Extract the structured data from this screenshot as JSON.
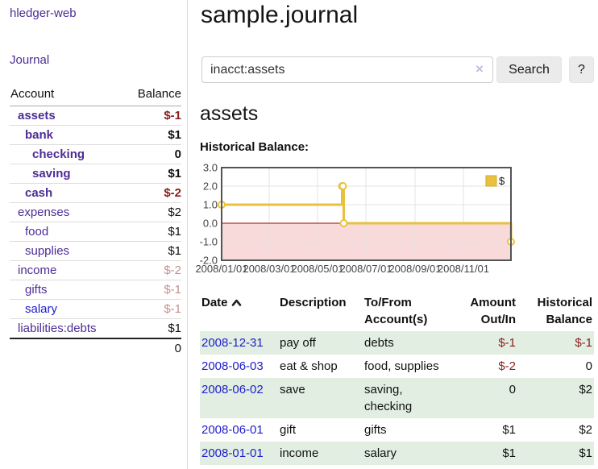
{
  "app": {
    "title": "hledger-web"
  },
  "sidebar": {
    "journal_label": "Journal",
    "accounts_table": {
      "headers": {
        "account": "Account",
        "balance": "Balance"
      },
      "rows": [
        {
          "name": "assets",
          "balance": "$-1",
          "indent": 0,
          "bold": true,
          "balance_tone": "neg-strong",
          "link_tone": "purple"
        },
        {
          "name": "bank",
          "balance": "$1",
          "indent": 1,
          "bold": true,
          "balance_tone": "normal",
          "link_tone": "purple"
        },
        {
          "name": "checking",
          "balance": "0",
          "indent": 2,
          "bold": true,
          "balance_tone": "normal",
          "link_tone": "purple"
        },
        {
          "name": "saving",
          "balance": "$1",
          "indent": 2,
          "bold": true,
          "balance_tone": "normal",
          "link_tone": "purple"
        },
        {
          "name": "cash",
          "balance": "$-2",
          "indent": 1,
          "bold": true,
          "balance_tone": "neg-strong",
          "link_tone": "purple"
        },
        {
          "name": "expenses",
          "balance": "$2",
          "indent": 0,
          "bold": false,
          "balance_tone": "normal",
          "link_tone": "purple"
        },
        {
          "name": "food",
          "balance": "$1",
          "indent": 1,
          "bold": false,
          "balance_tone": "normal",
          "link_tone": "purple"
        },
        {
          "name": "supplies",
          "balance": "$1",
          "indent": 1,
          "bold": false,
          "balance_tone": "normal",
          "link_tone": "purple"
        },
        {
          "name": "income",
          "balance": "$-2",
          "indent": 0,
          "bold": false,
          "balance_tone": "neg-faded",
          "link_tone": "purple"
        },
        {
          "name": "gifts",
          "balance": "$-1",
          "indent": 1,
          "bold": false,
          "balance_tone": "neg-faded",
          "link_tone": "purple"
        },
        {
          "name": "salary",
          "balance": "$-1",
          "indent": 1,
          "bold": false,
          "balance_tone": "neg-faded",
          "link_tone": "blue"
        },
        {
          "name": "liabilities:debts",
          "balance": "$1",
          "indent": 0,
          "bold": false,
          "balance_tone": "normal",
          "link_tone": "purple"
        }
      ],
      "total": "0"
    }
  },
  "main": {
    "title": "sample.journal",
    "search": {
      "value": "inacct:assets",
      "clear_label": "×",
      "button_label": "Search",
      "help_label": "?"
    },
    "account_heading": "assets",
    "chart_label": "Historical Balance:"
  },
  "chart_data": {
    "type": "line",
    "title": "Historical Balance:",
    "step": true,
    "series": [
      {
        "name": "$",
        "points": [
          [
            "2008-01-01",
            1
          ],
          [
            "2008-06-01",
            2
          ],
          [
            "2008-06-02",
            2
          ],
          [
            "2008-06-03",
            0
          ],
          [
            "2008-12-31",
            -1
          ]
        ],
        "point_days": [
          0,
          152,
          153,
          154,
          365
        ],
        "color": "#E8C23F",
        "marker_fill": "#ffffff"
      }
    ],
    "x_tick_labels": [
      "2008/01/01",
      "2008/03/01",
      "2008/05/01",
      "2008/07/01",
      "2008/09/01",
      "2008/11/01"
    ],
    "x_tick_days": [
      0,
      60,
      121,
      182,
      244,
      305
    ],
    "xlim_days": [
      0,
      365
    ],
    "y_ticks": [
      "3.0",
      "2.0",
      "1.0",
      "0.0",
      "-1.0",
      "-2.0"
    ],
    "y_tick_values": [
      3,
      2,
      1,
      0,
      -1,
      -2
    ],
    "ylim": [
      -2,
      3
    ],
    "grid": true,
    "grid_color": "#e3e3e3",
    "border_color": "#545454",
    "negative_region_color": "#f9dada",
    "zero_line_color": "#aa0000",
    "tick_label_color": "#444444",
    "legend": {
      "label": "$",
      "position": "top-right",
      "swatch_color": "#E8C23F",
      "swatch_border": "#cfa92f"
    }
  },
  "register_table": {
    "headers": [
      "Date",
      "Description",
      "To/From Account(s)",
      "Amount Out/In",
      "Historical Balance"
    ],
    "sort": {
      "column": "Date",
      "direction": "asc"
    },
    "rows": [
      {
        "date": "2008-12-31",
        "description": "pay off",
        "accounts": "debts",
        "amount": "$-1",
        "amount_tone": "neg-strong",
        "balance": "$-1",
        "balance_tone": "neg-strong",
        "shaded": true
      },
      {
        "date": "2008-06-03",
        "description": "eat & shop",
        "accounts": "food, supplies",
        "amount": "$-2",
        "amount_tone": "neg-strong",
        "balance": "0",
        "balance_tone": "normal",
        "shaded": false
      },
      {
        "date": "2008-06-02",
        "description": "save",
        "accounts": "saving,\nchecking",
        "amount": "0",
        "amount_tone": "normal",
        "balance": "$2",
        "balance_tone": "normal",
        "shaded": true
      },
      {
        "date": "2008-06-01",
        "description": "gift",
        "accounts": "gifts",
        "amount": "$1",
        "amount_tone": "normal",
        "balance": "$2",
        "balance_tone": "normal",
        "shaded": false
      },
      {
        "date": "2008-01-01",
        "description": "income",
        "accounts": "salary",
        "amount": "$1",
        "amount_tone": "normal",
        "balance": "$1",
        "balance_tone": "normal",
        "shaded": true
      }
    ]
  },
  "colors": {
    "link_purple": "#4c2c96",
    "link_blue": "#2020cc",
    "negative_strong": "#8b1d1d",
    "negative_faded": "#c49190",
    "row_green": "#e1eee1",
    "chart_line_gold": "#E8C23F",
    "chart_negative_pink": "#f9dada",
    "chart_zero_line": "#aa0000",
    "button_gray": "#ebebeb"
  }
}
